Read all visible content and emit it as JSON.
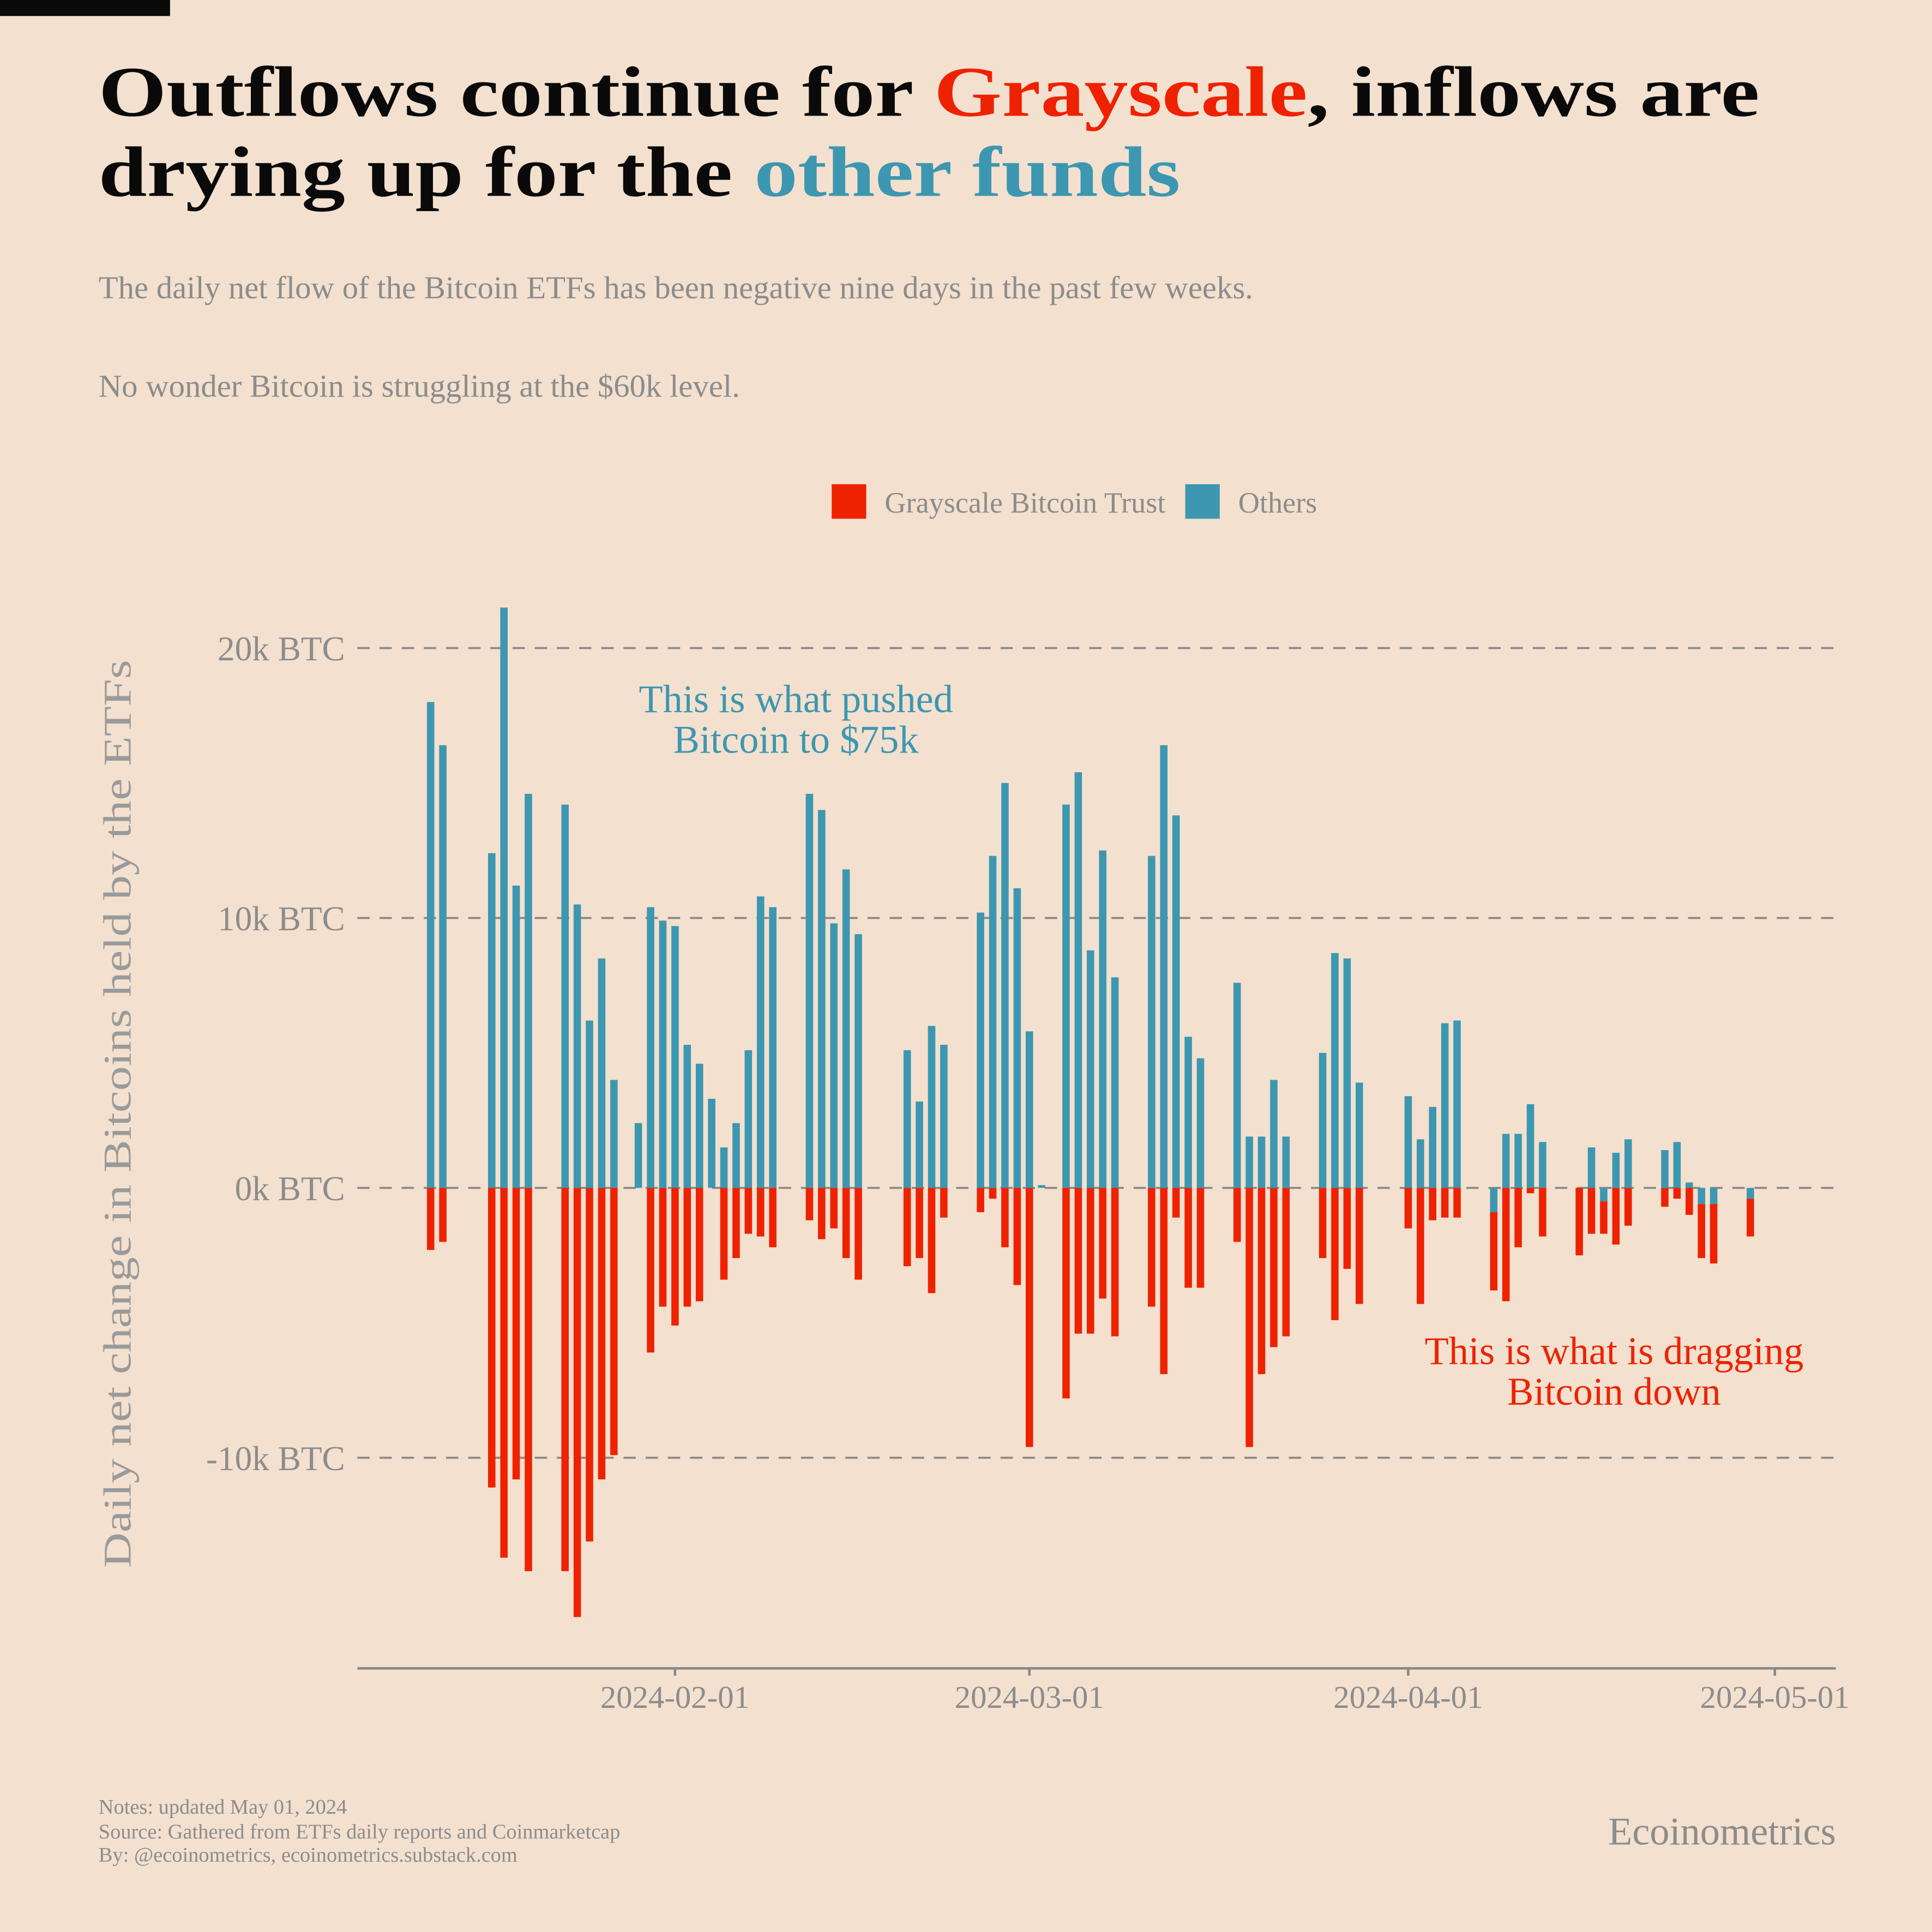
{
  "chart_data": {
    "type": "bar",
    "title_lines": [
      [
        "Outflows continue for ",
        "Grayscale",
        ", inflows are"
      ],
      [
        "drying up for the ",
        "other funds"
      ]
    ],
    "subtitle": [
      "The daily net flow of the Bitcoin ETFs has been negative nine days in the past few weeks.",
      "No wonder Bitcoin is struggling at the $60k level."
    ],
    "y_label": "Daily net change in Bitcoins held by the ETFs",
    "annotations": [
      {
        "lines": [
          "This is what pushed",
          "Bitcoin to $75k"
        ]
      },
      {
        "lines": [
          "This is what is dragging",
          "Bitcoin down"
        ]
      }
    ],
    "notes": [
      "Notes: updated May 01, 2024",
      "Source: Gathered from ETFs daily reports and Coinmarketcap",
      "By: @ecoinometrics, ecoinometrics.substack.com"
    ],
    "brand": "Ecoinometrics",
    "legend": "top",
    "stacked": true,
    "grid": true,
    "x": [
      "2024-01-12",
      "2024-01-13",
      "2024-01-17",
      "2024-01-18",
      "2024-01-19",
      "2024-01-20",
      "2024-01-23",
      "2024-01-24",
      "2024-01-25",
      "2024-01-26",
      "2024-01-27",
      "2024-01-29",
      "2024-01-30",
      "2024-01-31",
      "2024-02-01",
      "2024-02-02",
      "2024-02-03",
      "2024-02-04",
      "2024-02-05",
      "2024-02-06",
      "2024-02-07",
      "2024-02-08",
      "2024-02-09",
      "2024-02-12",
      "2024-02-13",
      "2024-02-14",
      "2024-02-15",
      "2024-02-16",
      "2024-02-20",
      "2024-02-21",
      "2024-02-22",
      "2024-02-23",
      "2024-02-26",
      "2024-02-27",
      "2024-02-28",
      "2024-02-29",
      "2024-03-01",
      "2024-03-02",
      "2024-03-04",
      "2024-03-05",
      "2024-03-06",
      "2024-03-07",
      "2024-03-08",
      "2024-03-11",
      "2024-03-12",
      "2024-03-13",
      "2024-03-14",
      "2024-03-15",
      "2024-03-18",
      "2024-03-19",
      "2024-03-20",
      "2024-03-21",
      "2024-03-22",
      "2024-03-25",
      "2024-03-26",
      "2024-03-27",
      "2024-03-28",
      "2024-04-01",
      "2024-04-02",
      "2024-04-03",
      "2024-04-04",
      "2024-04-05",
      "2024-04-08",
      "2024-04-09",
      "2024-04-10",
      "2024-04-11",
      "2024-04-12",
      "2024-04-15",
      "2024-04-16",
      "2024-04-17",
      "2024-04-18",
      "2024-04-19",
      "2024-04-22",
      "2024-04-23",
      "2024-04-24",
      "2024-04-25",
      "2024-04-26",
      "2024-04-29"
    ],
    "series": [
      {
        "name": "Grayscale Bitcoin Trust",
        "color": "#ee2200",
        "values": [
          -2300,
          -2000,
          -11100,
          -13700,
          -10800,
          -14200,
          -14200,
          -15900,
          -13100,
          -10800,
          -9900,
          0,
          -6100,
          -4400,
          -5100,
          -4400,
          -4200,
          0,
          -3400,
          -2600,
          -1700,
          -1800,
          -2200,
          -1200,
          -1900,
          -1500,
          -2600,
          -3400,
          -2900,
          -2600,
          -3900,
          -1100,
          -900,
          -400,
          -2200,
          -3600,
          -9600,
          0,
          -7800,
          -5400,
          -5400,
          -4100,
          -5500,
          -4400,
          -6900,
          -1100,
          -3700,
          -3700,
          -2000,
          -9600,
          -6900,
          -5900,
          -5500,
          -2600,
          -4900,
          -3000,
          -4300,
          -1500,
          -4300,
          -1200,
          -1100,
          -1100,
          -2900,
          -4200,
          -2200,
          -200,
          -1800,
          -2500,
          -1700,
          -1200,
          -2100,
          -1400,
          -700,
          -400,
          -1000,
          -2000,
          -2200,
          -1400
        ]
      },
      {
        "name": "Others",
        "color": "#3d97b0",
        "values": [
          18000,
          16400,
          12400,
          21500,
          11200,
          14600,
          14200,
          10500,
          6200,
          8500,
          4000,
          2400,
          10400,
          9900,
          9700,
          5300,
          4600,
          3300,
          1500,
          2400,
          5100,
          10800,
          10400,
          14600,
          14000,
          9800,
          11800,
          9400,
          5100,
          3200,
          6000,
          5300,
          10200,
          12300,
          15000,
          11100,
          5800,
          100,
          14200,
          15400,
          8800,
          12500,
          7800,
          12300,
          16400,
          13800,
          5600,
          4800,
          7600,
          1900,
          1900,
          4000,
          1900,
          5000,
          8700,
          8500,
          3900,
          3400,
          1800,
          3000,
          6100,
          6200,
          -900,
          2000,
          2000,
          3100,
          1700,
          0,
          1500,
          -500,
          1300,
          1800,
          1400,
          1700,
          200,
          -600,
          -600,
          -400
        ]
      }
    ],
    "xlim": [
      "2024-01-06",
      "2024-05-06"
    ],
    "xticks": [
      "2024-02-01",
      "2024-03-01",
      "2024-04-01",
      "2024-05-01"
    ],
    "ylim": [
      -17800,
      22600
    ],
    "yticks": [
      {
        "value": -10000,
        "label": "-10k BTC"
      },
      {
        "value": 0,
        "label": "0k BTC"
      },
      {
        "value": 10000,
        "label": "10k BTC"
      },
      {
        "value": 20000,
        "label": "20k BTC"
      }
    ]
  }
}
